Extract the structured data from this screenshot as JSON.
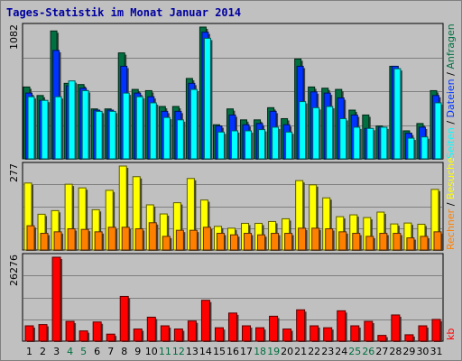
{
  "title": "Tages-Statistik im Monat Januar 2014",
  "colors": {
    "anfragen": "#007040",
    "dateien": "#0033ff",
    "seiten": "#00ffff",
    "besuche": "#ffff00",
    "rechner": "#ff8000",
    "kb": "#ff0000",
    "weekend": "#007040",
    "weekday": "#000000"
  },
  "chart_data": [
    {
      "type": "bar",
      "panel": "top",
      "ymax_label": "1082",
      "ylim": [
        0,
        1082
      ],
      "categories": [
        "1",
        "2",
        "3",
        "4",
        "5",
        "6",
        "7",
        "8",
        "9",
        "10",
        "11",
        "12",
        "13",
        "14",
        "15",
        "16",
        "17",
        "18",
        "19",
        "20",
        "21",
        "22",
        "23",
        "24",
        "25",
        "26",
        "27",
        "28",
        "29",
        "30",
        "31"
      ],
      "weekend": [
        false,
        false,
        false,
        true,
        true,
        false,
        false,
        false,
        false,
        false,
        true,
        true,
        false,
        false,
        false,
        false,
        false,
        true,
        true,
        false,
        false,
        false,
        false,
        false,
        true,
        true,
        false,
        false,
        false,
        false,
        false
      ],
      "series": [
        {
          "name": "Anfragen",
          "values": [
            590,
            520,
            1050,
            620,
            610,
            410,
            410,
            870,
            570,
            560,
            430,
            430,
            660,
            1082,
            280,
            410,
            320,
            320,
            420,
            330,
            820,
            590,
            580,
            570,
            400,
            360,
            270,
            760,
            230,
            290,
            560
          ]
        },
        {
          "name": "Dateien",
          "values": [
            540,
            480,
            890,
            600,
            580,
            400,
            400,
            760,
            540,
            510,
            390,
            390,
            620,
            1040,
            270,
            360,
            280,
            290,
            390,
            280,
            760,
            550,
            540,
            500,
            360,
            250,
            260,
            760,
            210,
            260,
            520
          ]
        },
        {
          "name": "Seiten",
          "values": [
            510,
            480,
            510,
            640,
            560,
            390,
            390,
            540,
            510,
            460,
            340,
            320,
            570,
            990,
            220,
            230,
            230,
            240,
            260,
            220,
            470,
            420,
            430,
            330,
            260,
            250,
            260,
            740,
            170,
            180,
            460
          ]
        }
      ]
    },
    {
      "type": "bar",
      "panel": "middle",
      "ymax_label": "277",
      "ylim": [
        0,
        277
      ],
      "categories": [
        "1",
        "2",
        "3",
        "4",
        "5",
        "6",
        "7",
        "8",
        "9",
        "10",
        "11",
        "12",
        "13",
        "14",
        "15",
        "16",
        "17",
        "18",
        "19",
        "20",
        "21",
        "22",
        "23",
        "24",
        "25",
        "26",
        "27",
        "28",
        "29",
        "30",
        "31"
      ],
      "series": [
        {
          "name": "Besuche",
          "values": [
            221,
            118,
            130,
            217,
            205,
            133,
            197,
            277,
            242,
            149,
            119,
            156,
            236,
            165,
            78,
            72,
            88,
            88,
            94,
            103,
            229,
            215,
            172,
            110,
            116,
            107,
            125,
            86,
            89,
            85,
            200
          ]
        },
        {
          "name": "Rechner",
          "values": [
            80,
            55,
            60,
            70,
            68,
            60,
            75,
            75,
            70,
            90,
            45,
            65,
            65,
            75,
            55,
            50,
            55,
            50,
            55,
            55,
            72,
            72,
            70,
            60,
            55,
            45,
            55,
            55,
            40,
            45,
            60
          ]
        }
      ]
    },
    {
      "type": "bar",
      "panel": "bottom",
      "ymax_label": "26276",
      "ylim": [
        0,
        26276
      ],
      "categories": [
        "1",
        "2",
        "3",
        "4",
        "5",
        "6",
        "7",
        "8",
        "9",
        "10",
        "11",
        "12",
        "13",
        "14",
        "15",
        "16",
        "17",
        "18",
        "19",
        "20",
        "21",
        "22",
        "23",
        "24",
        "25",
        "26",
        "27",
        "28",
        "29",
        "30",
        "31"
      ],
      "series": [
        {
          "name": "kb",
          "values": [
            4800,
            5200,
            26276,
            6200,
            3200,
            6000,
            2200,
            14000,
            3800,
            7500,
            4800,
            3800,
            6300,
            12800,
            4200,
            8800,
            4800,
            4200,
            7800,
            3800,
            9800,
            4800,
            4200,
            9500,
            4800,
            6200,
            1800,
            8200,
            2000,
            4800,
            6800
          ]
        }
      ]
    }
  ],
  "legend": {
    "top": {
      "anfragen": "Anfragen",
      "dateien": "Dateien",
      "seiten": "Seiten",
      "sep": " / "
    },
    "middle": {
      "besuche": "Besuche",
      "rechner": "Rechner",
      "sep": " / "
    },
    "bottom": {
      "kb": "kb"
    }
  }
}
